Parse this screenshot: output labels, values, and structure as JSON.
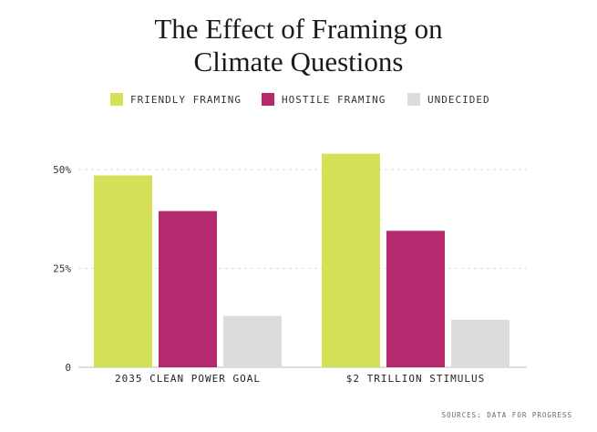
{
  "chart_data": {
    "type": "bar",
    "title_lines": [
      "The Effect of Framing on",
      "Climate Questions"
    ],
    "categories": [
      "2035 CLEAN POWER GOAL",
      "$2 TRILLION STIMULUS"
    ],
    "series": [
      {
        "name": "FRIENDLY FRAMING",
        "color": "#d4e157",
        "values": [
          48.5,
          54
        ]
      },
      {
        "name": "HOSTILE FRAMING",
        "color": "#b5296f",
        "values": [
          39.5,
          34.5
        ]
      },
      {
        "name": "UNDECIDED",
        "color": "#dcdcdc",
        "values": [
          13,
          12
        ]
      }
    ],
    "yticks": [
      {
        "value": 0,
        "label": "0"
      },
      {
        "value": 25,
        "label": "25%"
      },
      {
        "value": 50,
        "label": "50%"
      }
    ],
    "ylim": [
      0,
      50
    ],
    "grid": true,
    "legend_position": "top",
    "source": "SOURCES: DATA FOR PROGRESS"
  }
}
